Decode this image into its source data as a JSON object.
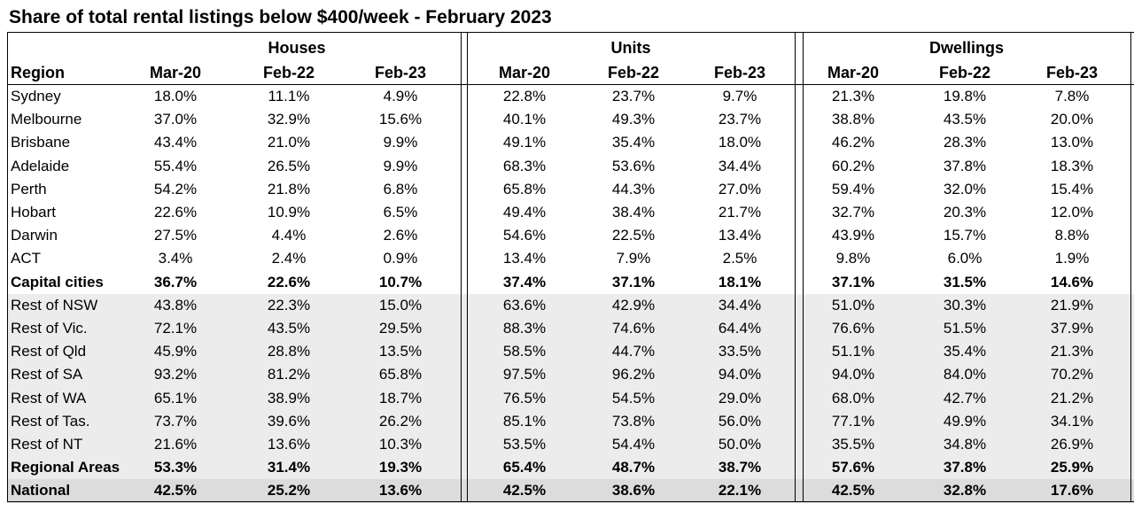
{
  "title": "Share of total rental listings below $400/week - February 2023",
  "groups": [
    "Houses",
    "Units",
    "Dwellings"
  ],
  "region_header": "Region",
  "periods": [
    "Mar-20",
    "Feb-22",
    "Feb-23"
  ],
  "rows": [
    {
      "region": "Sydney",
      "values": [
        "18.0%",
        "11.1%",
        "4.9%",
        "22.8%",
        "23.7%",
        "9.7%",
        "21.3%",
        "19.8%",
        "7.8%"
      ],
      "style": "normal"
    },
    {
      "region": "Melbourne",
      "values": [
        "37.0%",
        "32.9%",
        "15.6%",
        "40.1%",
        "49.3%",
        "23.7%",
        "38.8%",
        "43.5%",
        "20.0%"
      ],
      "style": "normal"
    },
    {
      "region": "Brisbane",
      "values": [
        "43.4%",
        "21.0%",
        "9.9%",
        "49.1%",
        "35.4%",
        "18.0%",
        "46.2%",
        "28.3%",
        "13.0%"
      ],
      "style": "normal"
    },
    {
      "region": "Adelaide",
      "values": [
        "55.4%",
        "26.5%",
        "9.9%",
        "68.3%",
        "53.6%",
        "34.4%",
        "60.2%",
        "37.8%",
        "18.3%"
      ],
      "style": "normal"
    },
    {
      "region": "Perth",
      "values": [
        "54.2%",
        "21.8%",
        "6.8%",
        "65.8%",
        "44.3%",
        "27.0%",
        "59.4%",
        "32.0%",
        "15.4%"
      ],
      "style": "normal"
    },
    {
      "region": "Hobart",
      "values": [
        "22.6%",
        "10.9%",
        "6.5%",
        "49.4%",
        "38.4%",
        "21.7%",
        "32.7%",
        "20.3%",
        "12.0%"
      ],
      "style": "normal"
    },
    {
      "region": "Darwin",
      "values": [
        "27.5%",
        "4.4%",
        "2.6%",
        "54.6%",
        "22.5%",
        "13.4%",
        "43.9%",
        "15.7%",
        "8.8%"
      ],
      "style": "normal"
    },
    {
      "region": "ACT",
      "values": [
        "3.4%",
        "2.4%",
        "0.9%",
        "13.4%",
        "7.9%",
        "2.5%",
        "9.8%",
        "6.0%",
        "1.9%"
      ],
      "style": "normal"
    },
    {
      "region": "Capital cities",
      "values": [
        "36.7%",
        "22.6%",
        "10.7%",
        "37.4%",
        "37.1%",
        "18.1%",
        "37.1%",
        "31.5%",
        "14.6%"
      ],
      "style": "bold"
    },
    {
      "region": "Rest of NSW",
      "values": [
        "43.8%",
        "22.3%",
        "15.0%",
        "63.6%",
        "42.9%",
        "34.4%",
        "51.0%",
        "30.3%",
        "21.9%"
      ],
      "style": "shade"
    },
    {
      "region": "Rest of Vic.",
      "values": [
        "72.1%",
        "43.5%",
        "29.5%",
        "88.3%",
        "74.6%",
        "64.4%",
        "76.6%",
        "51.5%",
        "37.9%"
      ],
      "style": "shade"
    },
    {
      "region": "Rest of Qld",
      "values": [
        "45.9%",
        "28.8%",
        "13.5%",
        "58.5%",
        "44.7%",
        "33.5%",
        "51.1%",
        "35.4%",
        "21.3%"
      ],
      "style": "shade"
    },
    {
      "region": "Rest of SA",
      "values": [
        "93.2%",
        "81.2%",
        "65.8%",
        "97.5%",
        "96.2%",
        "94.0%",
        "94.0%",
        "84.0%",
        "70.2%"
      ],
      "style": "shade"
    },
    {
      "region": "Rest of WA",
      "values": [
        "65.1%",
        "38.9%",
        "18.7%",
        "76.5%",
        "54.5%",
        "29.0%",
        "68.0%",
        "42.7%",
        "21.2%"
      ],
      "style": "shade"
    },
    {
      "region": "Rest of Tas.",
      "values": [
        "73.7%",
        "39.6%",
        "26.2%",
        "85.1%",
        "73.8%",
        "56.0%",
        "77.1%",
        "49.9%",
        "34.1%"
      ],
      "style": "shade"
    },
    {
      "region": "Rest of NT",
      "values": [
        "21.6%",
        "13.6%",
        "10.3%",
        "53.5%",
        "54.4%",
        "50.0%",
        "35.5%",
        "34.8%",
        "26.9%"
      ],
      "style": "shade"
    },
    {
      "region": "Regional Areas",
      "values": [
        "53.3%",
        "31.4%",
        "19.3%",
        "65.4%",
        "48.7%",
        "38.7%",
        "57.6%",
        "37.8%",
        "25.9%"
      ],
      "style": "shade-bold"
    },
    {
      "region": "National",
      "values": [
        "42.5%",
        "25.2%",
        "13.6%",
        "42.5%",
        "38.6%",
        "22.1%",
        "42.5%",
        "32.8%",
        "17.6%"
      ],
      "style": "shade2-bold"
    }
  ]
}
